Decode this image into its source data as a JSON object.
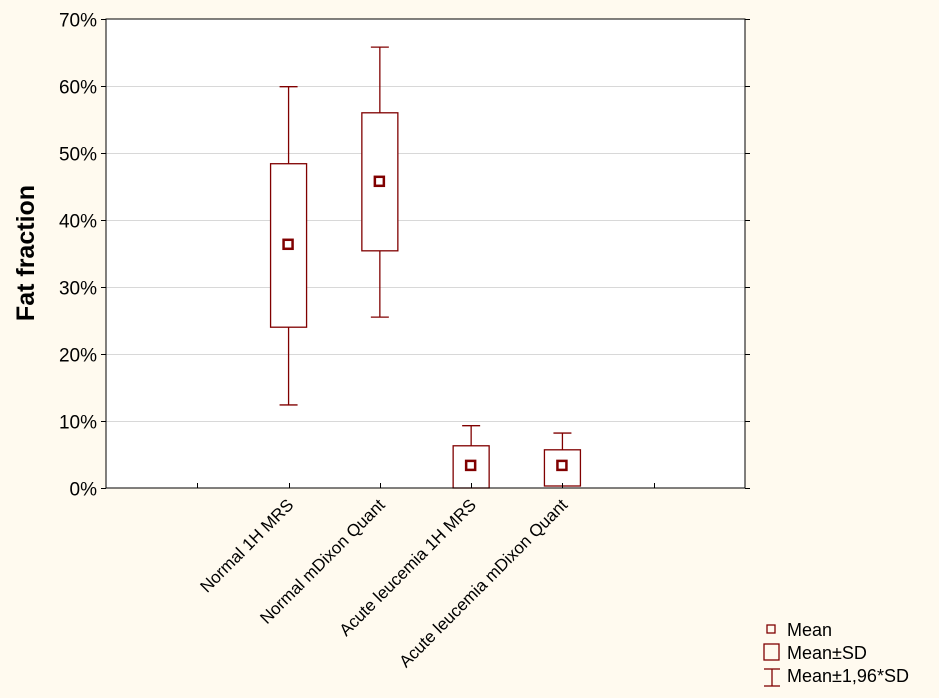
{
  "chart_data": {
    "type": "box",
    "title": "",
    "xlabel": "",
    "ylabel": "Fat fraction",
    "ylim": [
      0,
      70
    ],
    "yticks": [
      "0%",
      "10%",
      "20%",
      "30%",
      "40%",
      "50%",
      "60%",
      "70%"
    ],
    "grid": true,
    "categories": [
      "Normal 1H MRS",
      "Normal mDixon Quant",
      "Acute leucemia 1H MRS",
      "Acute leucemia mDixon Quant"
    ],
    "series": [
      {
        "name": "Mean",
        "values": [
          36.3,
          45.7,
          3.3,
          3.3
        ]
      },
      {
        "name": "Mean±SD",
        "low": [
          24.0,
          35.4,
          0.0,
          0.3
        ],
        "high": [
          48.4,
          56.0,
          6.3,
          5.7
        ]
      },
      {
        "name": "Mean±1,96*SD",
        "low": [
          12.4,
          25.5,
          -2.7,
          -1.6
        ],
        "high": [
          59.9,
          65.8,
          9.3,
          8.2
        ]
      }
    ],
    "legend": {
      "position": "bottom-right",
      "entries": [
        "Mean",
        "Mean±SD",
        "Mean±1,96*SD"
      ]
    },
    "colors": {
      "series": "#800000",
      "grid": "#d8d8d8",
      "background": "#fffaef",
      "plot": "#ffffff"
    }
  }
}
